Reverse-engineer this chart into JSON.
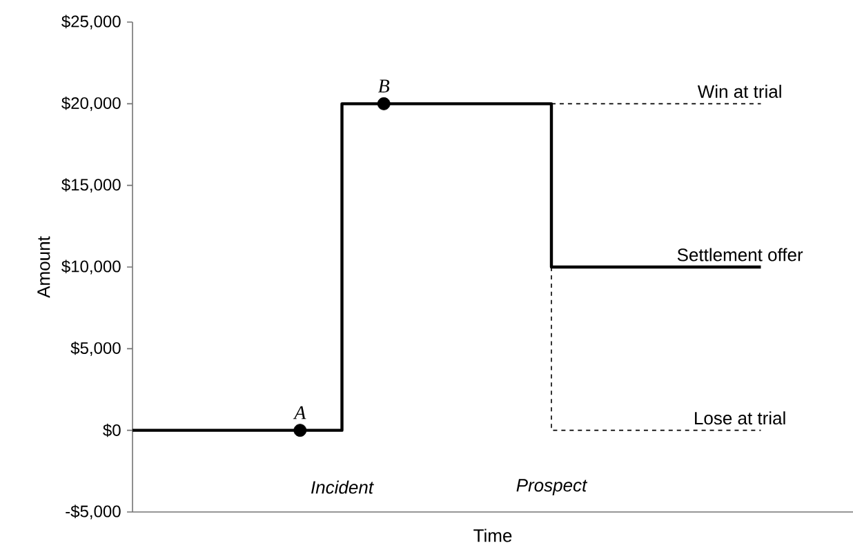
{
  "chart_data": {
    "type": "line",
    "xlabel": "Time",
    "ylabel": "Amount",
    "categories": [
      null,
      null,
      null,
      null,
      null,
      "Incident",
      null,
      null,
      null,
      null,
      "Prospect",
      null,
      null,
      null,
      null,
      null
    ],
    "ylim": [
      -5000,
      25000
    ],
    "yticks": [
      {
        "value": -5000,
        "label": "-$5,000"
      },
      {
        "value": 0,
        "label": "$0"
      },
      {
        "value": 5000,
        "label": "$5,000"
      },
      {
        "value": 10000,
        "label": "$10,000"
      },
      {
        "value": 15000,
        "label": "$15,000"
      },
      {
        "value": 20000,
        "label": "$20,000"
      },
      {
        "value": 25000,
        "label": "$25,000"
      }
    ],
    "grid": false,
    "legend": false,
    "marker": "none",
    "series": [
      {
        "name": "Settlement offer",
        "type": "step",
        "color": "#000000",
        "line_style": "solid",
        "values": [
          0,
          0,
          0,
          0,
          0,
          0,
          20000,
          20000,
          20000,
          20000,
          20000,
          10000,
          10000,
          10000,
          10000,
          10000
        ]
      },
      {
        "name": "Win at trial",
        "color": "#000000",
        "line_style": "dashed",
        "values": [
          null,
          null,
          null,
          null,
          null,
          null,
          null,
          null,
          null,
          null,
          20000,
          20000,
          20000,
          20000,
          20000,
          20000
        ]
      },
      {
        "name": "Lose at trial",
        "type": "step",
        "color": "#000000",
        "line_style": "dashed",
        "values": [
          null,
          null,
          null,
          null,
          null,
          null,
          null,
          null,
          null,
          null,
          10000,
          0,
          0,
          0,
          0,
          0
        ]
      },
      {
        "name": "A",
        "type": "scatter",
        "marker": "circle",
        "color": "#000000",
        "values": [
          null,
          null,
          null,
          null,
          0,
          null,
          null,
          null,
          null,
          null,
          null,
          null,
          null,
          null,
          null,
          null
        ]
      },
      {
        "name": "B",
        "type": "scatter",
        "marker": "circle",
        "color": "#000000",
        "values": [
          null,
          null,
          null,
          null,
          null,
          null,
          20000,
          null,
          null,
          null,
          null,
          null,
          null,
          null,
          null,
          null
        ]
      }
    ]
  }
}
